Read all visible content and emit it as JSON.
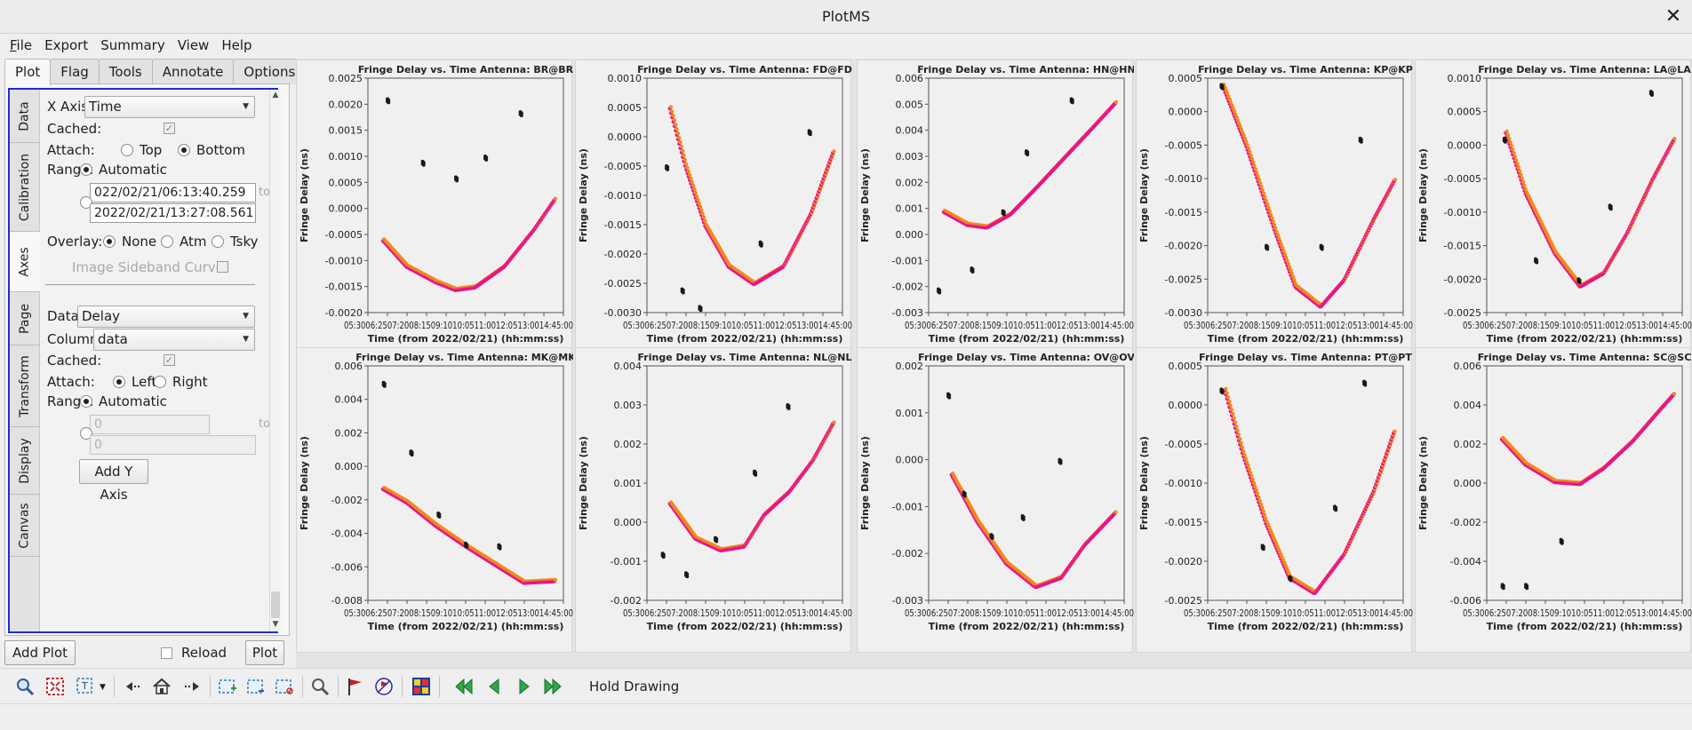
{
  "window": {
    "title": "PlotMS",
    "close_glyph": "✕"
  },
  "menu": [
    {
      "label": "File",
      "mnemonic": "F",
      "rest": "ile"
    },
    {
      "label": "Export",
      "mnemonic": "",
      "rest": "Export"
    },
    {
      "label": "Summary",
      "mnemonic": "",
      "rest": "Summary"
    },
    {
      "label": "View",
      "mnemonic": "",
      "rest": "View"
    },
    {
      "label": "Help",
      "mnemonic": "",
      "rest": "Help"
    }
  ],
  "tabs": [
    "Plot",
    "Flag",
    "Tools",
    "Annotate",
    "Options"
  ],
  "vtabs": [
    "Data",
    "Calibration",
    "Axes",
    "Page",
    "Transform",
    "Display",
    "Canvas"
  ],
  "axes": {
    "x_axis_label": "X Axis:",
    "x_axis_value": "Time",
    "cached_label": "Cached:",
    "attach_label": "Attach:",
    "attach_top": "Top",
    "attach_bottom": "Bottom",
    "range_label": "Range:",
    "automatic": "Automatic",
    "range_from": "022/02/21/06:13:40.259",
    "range_to_label": "to",
    "range_to": "2022/02/21/13:27:08.561",
    "overlay_label": "Overlay:",
    "overlay_none": "None",
    "overlay_atm": "Atm",
    "overlay_tsky": "Tsky",
    "sideband_label": "Image Sideband Curve:",
    "data_label": "Data:",
    "data_value": "Delay",
    "column_label": "Column:",
    "column_value": "data",
    "y_cached_label": "Cached:",
    "y_attach_label": "Attach:",
    "attach_left": "Left",
    "attach_right": "Right",
    "y_range_label": "Range:",
    "y_automatic": "Automatic",
    "y_range_from": "0",
    "y_range_to_label": "to",
    "y_range_to": "0",
    "add_y_axis": "Add Y Axis"
  },
  "bottom": {
    "add_plot": "Add Plot",
    "reload": "Reload",
    "plot": "Plot"
  },
  "toolbar": {
    "hold_drawing": "Hold Drawing"
  },
  "plots": [
    {
      "title": "Fringe Delay vs. Time Antenna: BR@BR",
      "yticks": [
        "0.0025",
        "0.0020",
        "0.0015",
        "0.0010",
        "0.0005",
        "0.0000",
        "-0.0005",
        "-0.0010",
        "-0.0015",
        "-0.0020"
      ],
      "ylim": [
        -0.002,
        0.0025
      ]
    },
    {
      "title": "Fringe Delay vs. Time Antenna: FD@FD",
      "yticks": [
        "0.0010",
        "0.0005",
        "0.0000",
        "-0.0005",
        "-0.0010",
        "-0.0015",
        "-0.0020",
        "-0.0025",
        "-0.0030"
      ],
      "ylim": [
        -0.003,
        0.001
      ]
    },
    {
      "title": "Fringe Delay vs. Time Antenna: HN@HN",
      "yticks": [
        "0.006",
        "0.005",
        "0.004",
        "0.003",
        "0.002",
        "0.001",
        "0.000",
        "-0.001",
        "-0.002",
        "-0.003"
      ],
      "ylim": [
        -0.003,
        0.006
      ]
    },
    {
      "title": "Fringe Delay vs. Time Antenna: KP@KP",
      "yticks": [
        "0.0005",
        "0.0000",
        "-0.0005",
        "-0.0010",
        "-0.0015",
        "-0.0020",
        "-0.0025",
        "-0.0030"
      ],
      "ylim": [
        -0.003,
        0.0005
      ]
    },
    {
      "title": "Fringe Delay vs. Time Antenna: LA@LA",
      "yticks": [
        "0.0010",
        "0.0005",
        "0.0000",
        "-0.0005",
        "-0.0010",
        "-0.0015",
        "-0.0020",
        "-0.0025"
      ],
      "ylim": [
        -0.0025,
        0.001
      ]
    },
    {
      "title": "Fringe Delay vs. Time Antenna: MK@MK",
      "yticks": [
        "0.006",
        "0.004",
        "0.002",
        "0.000",
        "-0.002",
        "-0.004",
        "-0.006",
        "-0.008"
      ],
      "ylim": [
        -0.008,
        0.006
      ]
    },
    {
      "title": "Fringe Delay vs. Time Antenna: NL@NL",
      "yticks": [
        "0.004",
        "0.003",
        "0.002",
        "0.001",
        "0.000",
        "-0.001",
        "-0.002"
      ],
      "ylim": [
        -0.002,
        0.004
      ]
    },
    {
      "title": "Fringe Delay vs. Time Antenna: OV@OV",
      "yticks": [
        "0.002",
        "0.001",
        "0.000",
        "-0.001",
        "-0.002",
        "-0.003"
      ],
      "ylim": [
        -0.003,
        0.002
      ]
    },
    {
      "title": "Fringe Delay vs. Time Antenna: PT@PT",
      "yticks": [
        "0.0005",
        "0.0000",
        "-0.0005",
        "-0.0010",
        "-0.0015",
        "-0.0020",
        "-0.0025"
      ],
      "ylim": [
        -0.0025,
        0.0005
      ]
    },
    {
      "title": "Fringe Delay vs. Time Antenna: SC@SC",
      "yticks": [
        "0.006",
        "0.004",
        "0.002",
        "0.000",
        "-0.002",
        "-0.004",
        "-0.006"
      ],
      "ylim": [
        -0.006,
        0.006
      ]
    }
  ],
  "chart_data": {
    "type": "scatter",
    "xlabel": "Time (from 2022/02/21) (hh:mm:ss)",
    "ylabel": "Fringe Delay (ns)",
    "xtick_label": "05:3006:2507:2008:1509:1010:0511:0012:0513:0014:45:00",
    "colors": {
      "fit_line_a": "#e8128a",
      "fit_line_b": "#f08a1c",
      "outliers": "#1a1a1a"
    },
    "panels": [
      {
        "antenna": "BR@BR",
        "curve": [
          [
            0.08,
            -0.0006
          ],
          [
            0.2,
            -0.0011
          ],
          [
            0.35,
            -0.0014
          ],
          [
            0.45,
            -0.00155
          ],
          [
            0.55,
            -0.0015
          ],
          [
            0.7,
            -0.0011
          ],
          [
            0.85,
            -0.0004
          ],
          [
            0.96,
            0.0002
          ]
        ],
        "outliers": [
          [
            0.1,
            0.0021
          ],
          [
            0.28,
            0.0009
          ],
          [
            0.45,
            0.0006
          ],
          [
            0.6,
            0.001
          ],
          [
            0.78,
            0.00185
          ]
        ]
      },
      {
        "antenna": "FD@FD",
        "curve": [
          [
            0.12,
            0.0005
          ],
          [
            0.2,
            -0.0005
          ],
          [
            0.3,
            -0.0015
          ],
          [
            0.42,
            -0.0022
          ],
          [
            0.55,
            -0.0025
          ],
          [
            0.7,
            -0.0022
          ],
          [
            0.84,
            -0.0013
          ],
          [
            0.96,
            -0.0002
          ]
        ],
        "outliers": [
          [
            0.1,
            -0.0005
          ],
          [
            0.18,
            -0.0026
          ],
          [
            0.27,
            -0.0029
          ],
          [
            0.58,
            -0.0018
          ],
          [
            0.83,
            0.0001
          ]
        ]
      },
      {
        "antenna": "HN@HN",
        "curve": [
          [
            0.08,
            0.0009
          ],
          [
            0.2,
            0.0004
          ],
          [
            0.3,
            0.0003
          ],
          [
            0.42,
            0.0008
          ],
          [
            0.55,
            0.0018
          ],
          [
            0.7,
            0.003
          ],
          [
            0.85,
            0.0042
          ],
          [
            0.96,
            0.0051
          ]
        ],
        "outliers": [
          [
            0.05,
            -0.0021
          ],
          [
            0.22,
            -0.0013
          ],
          [
            0.38,
            0.0009
          ],
          [
            0.5,
            0.0032
          ],
          [
            0.73,
            0.0052
          ]
        ]
      },
      {
        "antenna": "KP@KP",
        "curve": [
          [
            0.08,
            0.0004
          ],
          [
            0.2,
            -0.0005
          ],
          [
            0.35,
            -0.0018
          ],
          [
            0.45,
            -0.0026
          ],
          [
            0.58,
            -0.0029
          ],
          [
            0.7,
            -0.0025
          ],
          [
            0.85,
            -0.0016
          ],
          [
            0.96,
            -0.001
          ]
        ],
        "outliers": [
          [
            0.07,
            0.0004
          ],
          [
            0.3,
            -0.002
          ],
          [
            0.58,
            -0.002
          ],
          [
            0.78,
            -0.0004
          ]
        ]
      },
      {
        "antenna": "LA@LA",
        "curve": [
          [
            0.1,
            0.0002
          ],
          [
            0.2,
            -0.0007
          ],
          [
            0.35,
            -0.0016
          ],
          [
            0.48,
            -0.0021
          ],
          [
            0.6,
            -0.0019
          ],
          [
            0.72,
            -0.0013
          ],
          [
            0.85,
            -0.0005
          ],
          [
            0.96,
            0.0001
          ]
        ],
        "outliers": [
          [
            0.09,
            0.0001
          ],
          [
            0.25,
            -0.0017
          ],
          [
            0.47,
            -0.002
          ],
          [
            0.63,
            -0.0009
          ],
          [
            0.84,
            0.0008
          ]
        ]
      },
      {
        "antenna": "MK@MK",
        "curve": [
          [
            0.08,
            -0.0013
          ],
          [
            0.2,
            -0.0021
          ],
          [
            0.35,
            -0.0035
          ],
          [
            0.5,
            -0.0047
          ],
          [
            0.65,
            -0.0058
          ],
          [
            0.8,
            -0.0069
          ],
          [
            0.96,
            -0.0068
          ]
        ],
        "outliers": [
          [
            0.08,
            0.005
          ],
          [
            0.22,
            0.0009
          ],
          [
            0.36,
            -0.0028
          ],
          [
            0.5,
            -0.0046
          ],
          [
            0.67,
            -0.0047
          ]
        ]
      },
      {
        "antenna": "NL@NL",
        "curve": [
          [
            0.12,
            0.0005
          ],
          [
            0.25,
            -0.0004
          ],
          [
            0.38,
            -0.0007
          ],
          [
            0.5,
            -0.0006
          ],
          [
            0.6,
            0.0002
          ],
          [
            0.73,
            0.0008
          ],
          [
            0.85,
            0.0016
          ],
          [
            0.96,
            0.0026
          ]
        ],
        "outliers": [
          [
            0.08,
            -0.0008
          ],
          [
            0.2,
            -0.0013
          ],
          [
            0.35,
            -0.0004
          ],
          [
            0.55,
            0.0013
          ],
          [
            0.72,
            0.003
          ]
        ]
      },
      {
        "antenna": "OV@OV",
        "curve": [
          [
            0.12,
            -0.0003
          ],
          [
            0.25,
            -0.0013
          ],
          [
            0.4,
            -0.0022
          ],
          [
            0.55,
            -0.0027
          ],
          [
            0.68,
            -0.0025
          ],
          [
            0.8,
            -0.0018
          ],
          [
            0.96,
            -0.0011
          ]
        ],
        "outliers": [
          [
            0.1,
            0.0014
          ],
          [
            0.18,
            -0.0007
          ],
          [
            0.32,
            -0.0016
          ],
          [
            0.48,
            -0.0012
          ],
          [
            0.67,
            0.0
          ]
        ]
      },
      {
        "antenna": "PT@PT",
        "curve": [
          [
            0.09,
            0.0002
          ],
          [
            0.18,
            -0.0006
          ],
          [
            0.3,
            -0.0015
          ],
          [
            0.42,
            -0.0022
          ],
          [
            0.55,
            -0.0024
          ],
          [
            0.7,
            -0.0019
          ],
          [
            0.85,
            -0.0011
          ],
          [
            0.96,
            -0.0003
          ]
        ],
        "outliers": [
          [
            0.07,
            0.0002
          ],
          [
            0.28,
            -0.0018
          ],
          [
            0.42,
            -0.0022
          ],
          [
            0.65,
            -0.0013
          ],
          [
            0.8,
            0.0003
          ]
        ]
      },
      {
        "antenna": "SC@SC",
        "curve": [
          [
            0.08,
            0.0023
          ],
          [
            0.2,
            0.001
          ],
          [
            0.35,
            0.0001
          ],
          [
            0.48,
            0.0
          ],
          [
            0.6,
            0.0008
          ],
          [
            0.75,
            0.0022
          ],
          [
            0.88,
            0.0037
          ],
          [
            0.96,
            0.0046
          ]
        ],
        "outliers": [
          [
            0.08,
            -0.0052
          ],
          [
            0.2,
            -0.0052
          ],
          [
            0.38,
            -0.0029
          ]
        ]
      }
    ]
  }
}
